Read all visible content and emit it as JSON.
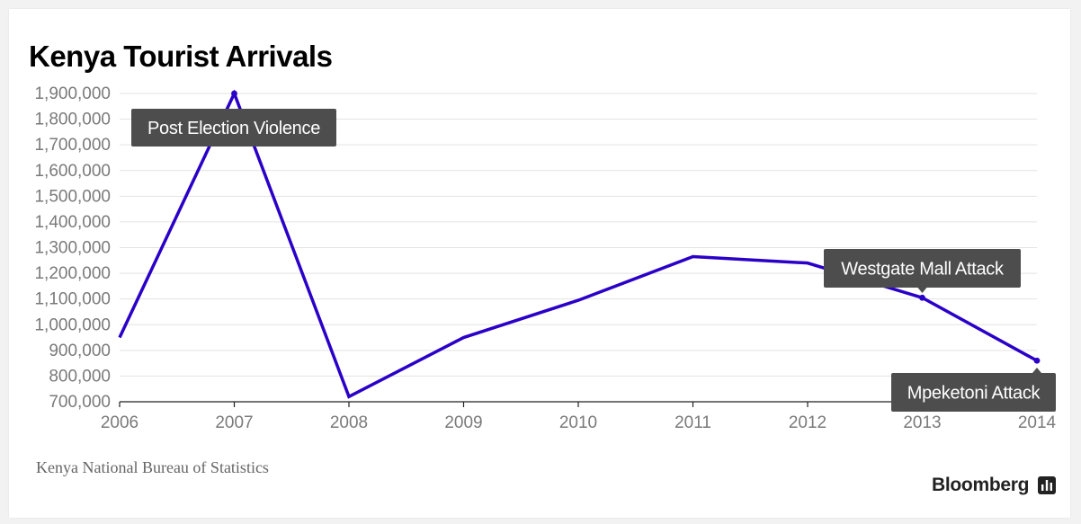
{
  "chart_data": {
    "type": "line",
    "title": "Kenya Tourist Arrivals",
    "x": [
      2006,
      2007,
      2008,
      2009,
      2010,
      2011,
      2012,
      2013,
      2014
    ],
    "series": [
      {
        "values": [
          950000,
          1900000,
          720000,
          950000,
          1095000,
          1265000,
          1240000,
          1105000,
          860000
        ]
      }
    ],
    "yticks": [
      700000,
      800000,
      900000,
      1000000,
      1100000,
      1200000,
      1300000,
      1400000,
      1500000,
      1600000,
      1700000,
      1800000,
      1900000
    ],
    "ylim": [
      700000,
      1900000
    ],
    "xlim": [
      2006,
      2014
    ],
    "grid": true,
    "annotations": [
      {
        "text": "Post Election Violence",
        "x": 2007
      },
      {
        "text": "Westgate Mall Attack",
        "x": 2013
      },
      {
        "text": "Mpeketoni Attack",
        "x": 2014
      }
    ]
  },
  "colors": {
    "line": "#2a00c8",
    "annotation_bg": "#4d4d4d",
    "annotation_text": "#ffffff",
    "grid": "#e3e3e3",
    "tick_label": "#7a7a7a"
  },
  "source": "Kenya National Bureau of Statistics",
  "brand": {
    "name": "Bloomberg",
    "icon": "bloomberg-chart-icon"
  }
}
